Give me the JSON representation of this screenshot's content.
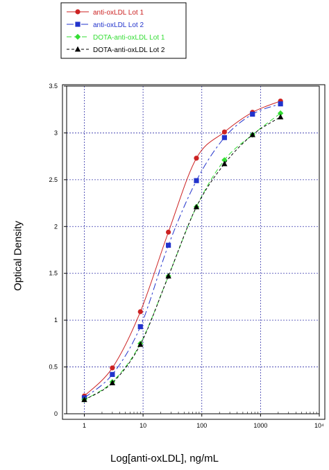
{
  "chart_data": {
    "type": "line",
    "xlabel": "Log[anti-oxLDL], ng/mL",
    "ylabel": "Optical Density",
    "xscale": "log",
    "xlim": [
      0.5,
      10000
    ],
    "ylim": [
      0,
      3.5
    ],
    "grid": true,
    "legend_position": "top-left",
    "x_ticks": [
      {
        "value": 1,
        "label": "1"
      },
      {
        "value": 10,
        "label": "10"
      },
      {
        "value": 100,
        "label": "100"
      },
      {
        "value": 1000,
        "label": "1000"
      },
      {
        "value": 10000,
        "label": "10⁴"
      }
    ],
    "y_ticks": [
      {
        "value": 0,
        "label": "0"
      },
      {
        "value": 0.5,
        "label": "0.5"
      },
      {
        "value": 1,
        "label": "1"
      },
      {
        "value": 1.5,
        "label": "1.5"
      },
      {
        "value": 2,
        "label": "2"
      },
      {
        "value": 2.5,
        "label": "2.5"
      },
      {
        "value": 3,
        "label": "3"
      },
      {
        "value": 3.5,
        "label": "3.5"
      }
    ],
    "x": [
      1,
      3,
      9,
      27,
      81,
      243,
      729,
      2187
    ],
    "series": [
      {
        "name": "anti-oxLDL Lot 1",
        "color": "#cc2222",
        "marker": "circle",
        "dash": "solid",
        "values": [
          0.19,
          0.49,
          1.09,
          1.94,
          2.73,
          3.01,
          3.22,
          3.34
        ]
      },
      {
        "name": "anti-oxLDL Lot 2",
        "color": "#2233cc",
        "marker": "square",
        "dash": "long-dash",
        "values": [
          0.17,
          0.42,
          0.93,
          1.8,
          2.49,
          2.95,
          3.2,
          3.31
        ]
      },
      {
        "name": "DOTA-anti-oxLDL Lot 1",
        "color": "#33dd33",
        "marker": "diamond",
        "dash": "dash",
        "values": [
          0.15,
          0.34,
          0.75,
          1.47,
          2.21,
          2.71,
          2.98,
          3.21
        ]
      },
      {
        "name": "DOTA-anti-oxLDL Lot 2",
        "color": "#000000",
        "marker": "triangle",
        "dash": "short-dash",
        "values": [
          0.15,
          0.33,
          0.74,
          1.47,
          2.21,
          2.67,
          2.98,
          3.17
        ]
      }
    ]
  }
}
